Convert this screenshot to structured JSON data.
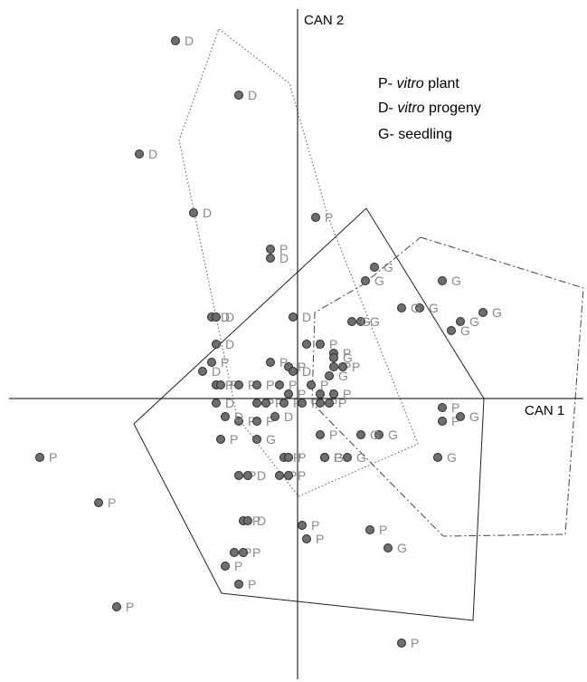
{
  "chart_data": {
    "type": "scatter",
    "title": "",
    "xlabel": "CAN 1",
    "ylabel": "CAN 2",
    "xlim": [
      -6.5,
      6.5
    ],
    "ylim": [
      -6.0,
      8.6
    ],
    "grid": false,
    "legend_position": "top-right",
    "legend": [
      {
        "code": "P-",
        "italic": "vitro",
        "rest": " plant"
      },
      {
        "code": "D-",
        "italic": "vitro",
        "rest": " progeny"
      },
      {
        "code": "G-",
        "italic": "seedling",
        "rest": ""
      }
    ],
    "series": [
      {
        "name": "P",
        "points": [
          [
            0.4,
            4.0
          ],
          [
            -0.6,
            3.3
          ],
          [
            0.2,
            1.2
          ],
          [
            0.5,
            1.2
          ],
          [
            0.8,
            1.0
          ],
          [
            -1.9,
            0.8
          ],
          [
            -0.6,
            0.8
          ],
          [
            -0.2,
            0.7
          ],
          [
            0.8,
            0.7
          ],
          [
            1.0,
            0.7
          ],
          [
            -1.8,
            0.3
          ],
          [
            -1.7,
            0.3
          ],
          [
            -1.3,
            0.3
          ],
          [
            -0.9,
            0.3
          ],
          [
            -0.4,
            0.3
          ],
          [
            0.3,
            0.3
          ],
          [
            -0.2,
            0.1
          ],
          [
            0.5,
            0.1
          ],
          [
            0.8,
            0.1
          ],
          [
            -0.9,
            -0.1
          ],
          [
            -0.7,
            -0.1
          ],
          [
            -0.3,
            -0.1
          ],
          [
            0.1,
            -0.1
          ],
          [
            0.5,
            -0.1
          ],
          [
            0.7,
            -0.1
          ],
          [
            3.2,
            -0.2
          ],
          [
            -1.7,
            -0.9
          ],
          [
            -1.3,
            -0.5
          ],
          [
            -0.9,
            -0.5
          ],
          [
            0.5,
            -0.8
          ],
          [
            -0.3,
            -1.3
          ],
          [
            -0.2,
            -1.3
          ],
          [
            3.2,
            -0.5
          ],
          [
            -1.3,
            -1.7
          ],
          [
            -0.4,
            -1.7
          ],
          [
            -0.2,
            -1.7
          ],
          [
            -5.7,
            -1.3
          ],
          [
            0.6,
            -1.3
          ],
          [
            -4.4,
            -2.3
          ],
          [
            -1.2,
            -2.7
          ],
          [
            0.1,
            -2.8
          ],
          [
            0.2,
            -3.1
          ],
          [
            1.6,
            -2.9
          ],
          [
            -1.4,
            -3.4
          ],
          [
            -1.2,
            -3.4
          ],
          [
            -1.6,
            -3.7
          ],
          [
            -1.3,
            -4.1
          ],
          [
            -4.0,
            -4.6
          ],
          [
            2.3,
            -5.4
          ]
        ]
      },
      {
        "name": "D",
        "points": [
          [
            -2.7,
            7.9
          ],
          [
            -1.3,
            6.7
          ],
          [
            -3.5,
            5.4
          ],
          [
            -2.3,
            4.1
          ],
          [
            -0.6,
            3.1
          ],
          [
            -1.9,
            1.8
          ],
          [
            -1.8,
            1.8
          ],
          [
            -0.1,
            1.8
          ],
          [
            -1.8,
            1.2
          ],
          [
            -2.1,
            0.6
          ],
          [
            -0.1,
            0.6
          ],
          [
            -1.8,
            -0.1
          ],
          [
            -1.6,
            -0.4
          ],
          [
            -0.5,
            -0.4
          ],
          [
            -1.1,
            -1.7
          ],
          [
            -1.1,
            -2.7
          ]
        ]
      },
      {
        "name": "G",
        "points": [
          [
            1.7,
            2.9
          ],
          [
            1.5,
            2.6
          ],
          [
            3.2,
            2.6
          ],
          [
            2.7,
            2.0
          ],
          [
            2.3,
            2.0
          ],
          [
            1.4,
            1.7
          ],
          [
            1.2,
            1.7
          ],
          [
            3.6,
            1.7
          ],
          [
            4.1,
            1.9
          ],
          [
            3.4,
            1.5
          ],
          [
            0.8,
            0.9
          ],
          [
            0.7,
            0.5
          ],
          [
            3.6,
            -0.4
          ],
          [
            1.8,
            -0.8
          ],
          [
            1.4,
            -0.8
          ],
          [
            1.1,
            -1.3
          ],
          [
            3.1,
            -1.3
          ],
          [
            0.6,
            -1.3
          ],
          [
            -0.9,
            -0.9
          ],
          [
            2.0,
            -3.3
          ]
        ]
      }
    ]
  }
}
